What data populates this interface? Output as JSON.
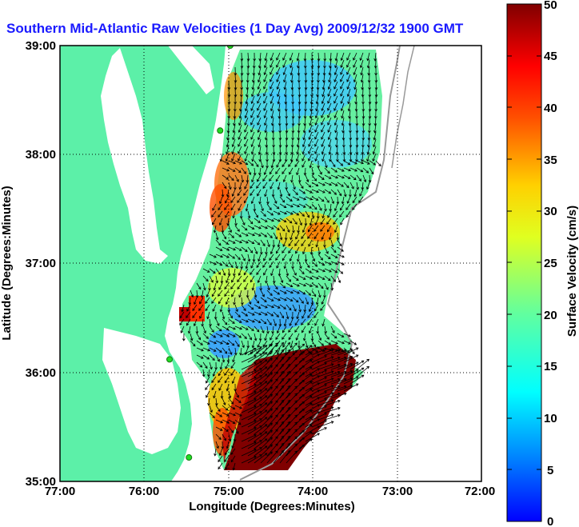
{
  "title": "Southern Mid-Atlantic Raw Velocities (1 Day Avg) 2009/12/32 1900 GMT",
  "x_axis": {
    "label": "Longitude (Degrees:Minutes)",
    "ticks": [
      "77:00",
      "76:00",
      "75:00",
      "74:00",
      "73:00",
      "72:00"
    ]
  },
  "y_axis": {
    "label": "Latitude (Degrees:Minutes)",
    "ticks": [
      "39:00",
      "38:00",
      "37:00",
      "36:00",
      "35:00"
    ]
  },
  "colorbar": {
    "label": "Surface Velocity (cm/s)",
    "ticks": [
      "50",
      "45",
      "40",
      "35",
      "30",
      "25",
      "20",
      "15",
      "10",
      "5",
      "0"
    ],
    "range": [
      0,
      50
    ],
    "colormap": "jet"
  },
  "colors": {
    "land": "#5cf0a8",
    "water": "#ffffff",
    "title": "#1a1aff",
    "stations": "#22dd22"
  },
  "map_extent": {
    "lon": [
      -77,
      -72
    ],
    "lat": [
      35,
      39
    ]
  },
  "stations": [
    {
      "lon": -74.98,
      "lat": 39.0
    },
    {
      "lon": -75.1,
      "lat": 38.22
    },
    {
      "lon": -75.7,
      "lat": 36.12
    },
    {
      "lon": -75.47,
      "lat": 35.22
    }
  ]
}
